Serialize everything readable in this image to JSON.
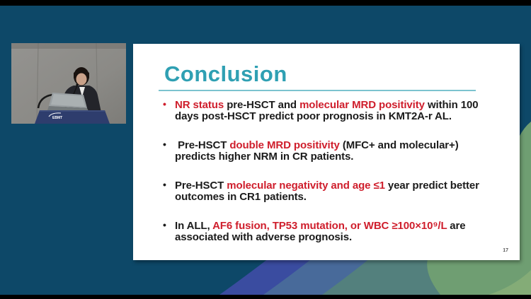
{
  "background": {
    "base_color": "#0d4868",
    "letterbox_color": "#000000",
    "swoosh_colors": {
      "purple_blue": "#3a4ca0",
      "slate_blue": "#486a9a",
      "teal_gray": "#53807d",
      "green": "#6f9e72",
      "light_green": "#84ac77"
    }
  },
  "video": {
    "podium_logo": "EBMT"
  },
  "slide": {
    "title": "Conclusion",
    "page_number": "17",
    "colors": {
      "title": "#2fa0b3",
      "rule": "#7cc3cf",
      "red": "#cf1e2c",
      "text": "#1b1b1b"
    },
    "bullets": [
      {
        "dot_color": "#cf1e2c",
        "segments": [
          {
            "text": "NR status ",
            "color": "red"
          },
          {
            "text": "pre-HSCT and ",
            "color": "text"
          },
          {
            "text": "molecular MRD positivity",
            "color": "red"
          },
          {
            "text": " within 100 days post-HSCT predict poor prognosis in KMT2A-r AL.",
            "color": "text"
          }
        ]
      },
      {
        "dot_color": "#1b1b1b",
        "segments": [
          {
            "text": " Pre-HSCT ",
            "color": "text"
          },
          {
            "text": "double MRD positivity",
            "color": "red"
          },
          {
            "text": " (MFC+ and molecular+) predicts higher NRM in CR patients.",
            "color": "text"
          }
        ]
      },
      {
        "dot_color": "#1b1b1b",
        "segments": [
          {
            "text": "Pre-HSCT ",
            "color": "text"
          },
          {
            "text": "molecular negativity and age ≤1",
            "color": "red"
          },
          {
            "text": " year predict better outcomes in CR1 patients.",
            "color": "text"
          }
        ]
      },
      {
        "dot_color": "#1b1b1b",
        "segments": [
          {
            "text": "In ALL, ",
            "color": "text"
          },
          {
            "text": "AF6 fusion, TP53 mutation, or WBC ≥100×10⁹/L",
            "color": "red"
          },
          {
            "text": " are associated with adverse prognosis.",
            "color": "text"
          }
        ]
      }
    ]
  }
}
